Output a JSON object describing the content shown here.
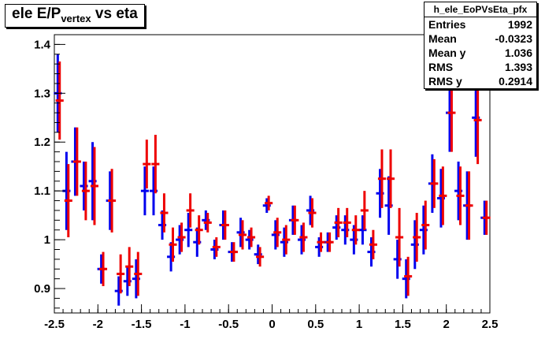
{
  "title": {
    "main": "ele E/P",
    "sub": "vertex",
    "tail": " vs eta"
  },
  "stats": {
    "name": "h_ele_EoPVsEta_pfx",
    "rows": [
      {
        "label": "Entries",
        "value": "1992"
      },
      {
        "label": "Mean",
        "value": "-0.0323"
      },
      {
        "label": "Mean y",
        "value": "1.036"
      },
      {
        "label": "RMS",
        "value": "1.393"
      },
      {
        "label": "RMS y",
        "value": "0.2914"
      }
    ]
  },
  "colors": {
    "series_a": "#0000ee",
    "series_b": "#ee0000",
    "axis": "#000000"
  },
  "chart_data": {
    "type": "scatter",
    "title": "ele E/Pvertex vs eta",
    "xlim": [
      -2.5,
      2.5
    ],
    "ylim": [
      0.85,
      1.42
    ],
    "x_ticks": [
      -2.5,
      -2,
      -1.5,
      -1,
      -0.5,
      0,
      0.5,
      1,
      1.5,
      2,
      2.5
    ],
    "x_tick_labels": [
      "-2.5",
      "-2",
      "-1.5",
      "-1",
      "-0.5",
      "0",
      "0.5",
      "1",
      "1.5",
      "2",
      "2.5"
    ],
    "y_ticks": [
      0.9,
      1.0,
      1.1,
      1.2,
      1.3,
      1.4
    ],
    "y_tick_labels": [
      "0.9",
      "1",
      "1.1",
      "1.2",
      "1.3",
      "1.4"
    ],
    "grid": false,
    "legend": "none",
    "bin_width": 0.1,
    "series": [
      {
        "x": [
          -2.45,
          -2.35,
          -2.25,
          -2.15,
          -2.05,
          -1.95,
          -1.85,
          -1.75,
          -1.65,
          -1.55,
          -1.45,
          -1.35,
          -1.25,
          -1.15,
          -1.05,
          -0.95,
          -0.85,
          -0.75,
          -0.65,
          -0.55,
          -0.45,
          -0.35,
          -0.25,
          -0.15,
          -0.05,
          0.05,
          0.15,
          0.25,
          0.35,
          0.45,
          0.55,
          0.65,
          0.75,
          0.85,
          0.95,
          1.05,
          1.15,
          1.25,
          1.35,
          1.45,
          1.55,
          1.65,
          1.75,
          1.85,
          1.95,
          2.05,
          2.15,
          2.25,
          2.35,
          2.45
        ],
        "y": [
          1.3,
          1.1,
          1.16,
          1.11,
          1.12,
          0.94,
          1.08,
          0.895,
          0.915,
          0.92,
          1.1,
          1.1,
          1.03,
          0.965,
          1.0,
          1.02,
          0.995,
          1.04,
          0.98,
          1.03,
          0.975,
          1.015,
          1.0,
          0.97,
          1.07,
          1.01,
          0.995,
          1.04,
          1.0,
          1.06,
          0.985,
          0.995,
          1.025,
          1.02,
          1.0,
          1.02,
          0.975,
          1.095,
          1.07,
          0.96,
          0.92,
          0.99,
          1.02,
          1.115,
          1.085,
          1.26,
          1.1,
          1.07,
          1.25,
          1.045
        ],
        "err": [
          0.08,
          0.08,
          0.07,
          0.05,
          0.08,
          0.03,
          0.06,
          0.03,
          0.03,
          0.04,
          0.05,
          0.05,
          0.03,
          0.03,
          0.03,
          0.035,
          0.03,
          0.02,
          0.02,
          0.03,
          0.02,
          0.03,
          0.02,
          0.02,
          0.015,
          0.03,
          0.03,
          0.03,
          0.03,
          0.03,
          0.02,
          0.02,
          0.025,
          0.03,
          0.03,
          0.03,
          0.03,
          0.05,
          0.06,
          0.04,
          0.04,
          0.05,
          0.05,
          0.06,
          0.06,
          0.08,
          0.06,
          0.07,
          0.08,
          0.035
        ]
      },
      {
        "x": [
          -2.45,
          -2.35,
          -2.25,
          -2.15,
          -2.05,
          -1.95,
          -1.85,
          -1.75,
          -1.65,
          -1.55,
          -1.45,
          -1.35,
          -1.25,
          -1.15,
          -1.05,
          -0.95,
          -0.85,
          -0.75,
          -0.65,
          -0.55,
          -0.45,
          -0.35,
          -0.25,
          -0.15,
          -0.05,
          0.05,
          0.15,
          0.25,
          0.35,
          0.45,
          0.55,
          0.65,
          0.75,
          0.85,
          0.95,
          1.05,
          1.15,
          1.25,
          1.35,
          1.45,
          1.55,
          1.65,
          1.75,
          1.85,
          1.95,
          2.05,
          2.15,
          2.25,
          2.35,
          2.45
        ],
        "y": [
          1.285,
          1.08,
          1.16,
          1.1,
          1.11,
          0.94,
          1.08,
          0.93,
          0.945,
          0.93,
          1.155,
          1.155,
          1.055,
          0.99,
          1.005,
          1.06,
          1.02,
          1.035,
          0.985,
          1.03,
          0.975,
          1.01,
          1.005,
          0.965,
          1.075,
          1.015,
          1.0,
          1.04,
          1.005,
          1.055,
          0.995,
          0.995,
          1.035,
          1.035,
          1.02,
          1.06,
          0.99,
          1.125,
          1.125,
          1.005,
          0.925,
          1.005,
          1.03,
          1.115,
          1.09,
          1.26,
          1.09,
          1.07,
          1.245,
          1.045
        ],
        "err": [
          0.08,
          0.075,
          0.07,
          0.06,
          0.08,
          0.035,
          0.065,
          0.04,
          0.04,
          0.045,
          0.05,
          0.06,
          0.04,
          0.035,
          0.03,
          0.035,
          0.03,
          0.02,
          0.02,
          0.03,
          0.02,
          0.03,
          0.02,
          0.02,
          0.015,
          0.03,
          0.03,
          0.03,
          0.03,
          0.03,
          0.02,
          0.02,
          0.03,
          0.03,
          0.03,
          0.04,
          0.03,
          0.06,
          0.06,
          0.06,
          0.04,
          0.05,
          0.05,
          0.05,
          0.06,
          0.08,
          0.06,
          0.07,
          0.09,
          0.035
        ]
      }
    ]
  }
}
